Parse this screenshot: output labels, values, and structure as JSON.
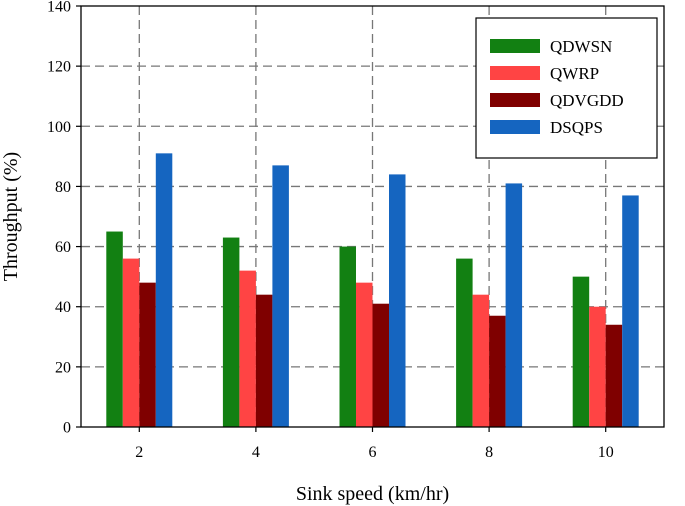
{
  "chart_data": {
    "type": "bar",
    "xlabel": "Sink speed (km/hr)",
    "ylabel": "Throughput (%)",
    "categories": [
      "2",
      "4",
      "6",
      "8",
      "10"
    ],
    "ylim": [
      0,
      140
    ],
    "yticks": [
      0,
      20,
      40,
      60,
      80,
      100,
      120,
      140
    ],
    "grid": true,
    "legend_position": "top-right",
    "series": [
      {
        "name": "QDWSN",
        "color": "#128012",
        "values": [
          65,
          63,
          60,
          56,
          50
        ]
      },
      {
        "name": "QWRP",
        "color": "#ff4444",
        "values": [
          56,
          52,
          48,
          44,
          40
        ]
      },
      {
        "name": "QDVGDD",
        "color": "#7f0000",
        "values": [
          48,
          44,
          41,
          37,
          34
        ]
      },
      {
        "name": "DSQPS",
        "color": "#1565c0",
        "values": [
          91,
          87,
          84,
          81,
          77
        ]
      }
    ]
  }
}
